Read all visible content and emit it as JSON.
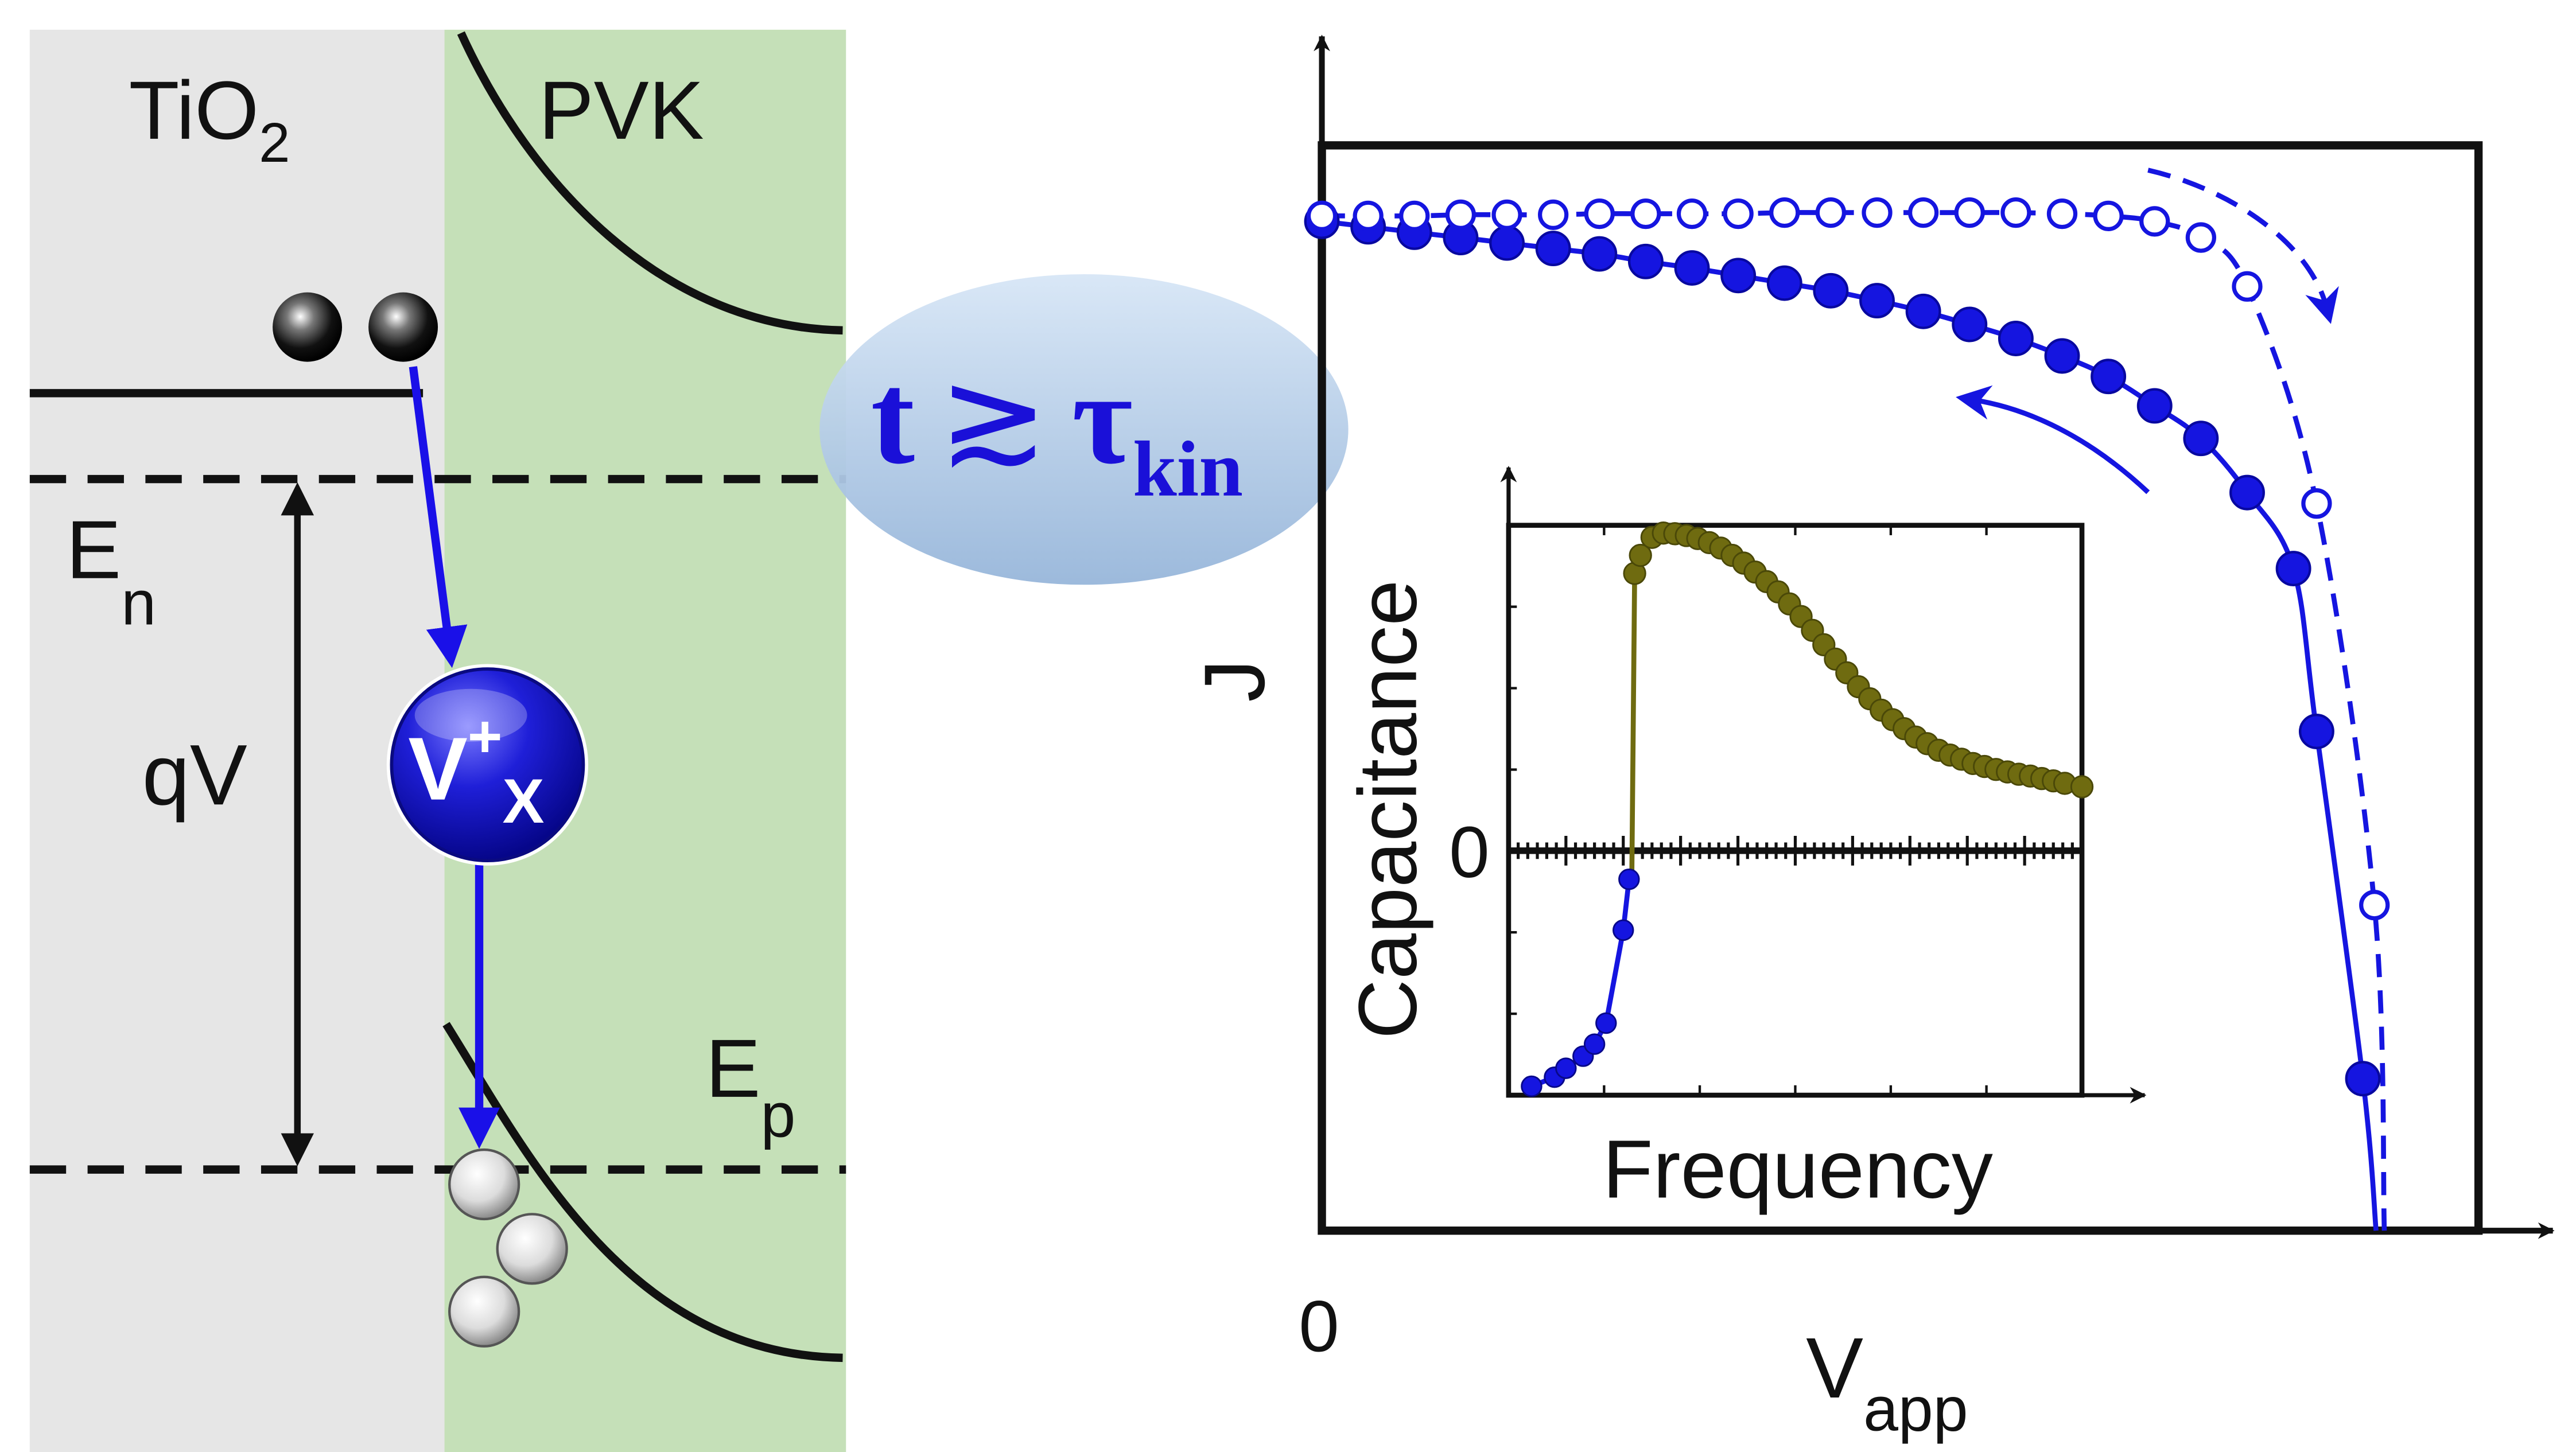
{
  "band_diagram": {
    "left_layer": {
      "base": "TiO",
      "sub": "2"
    },
    "right_layer": "PVK",
    "quasi_fermi_n": {
      "base": "E",
      "sub": "n"
    },
    "quasi_fermi_p": {
      "base": "E",
      "sub": "p"
    },
    "voltage_label": "qV",
    "vacancy": {
      "base": "V",
      "sup": "+",
      "sub": "X"
    },
    "colors": {
      "tio2": "#e6e6e6",
      "pvk": "#c5e0b8",
      "arrow": "#1a10e8",
      "ion": "#1a1ad8"
    }
  },
  "bubble": {
    "main": "t",
    "relation": "≳",
    "tau": "τ",
    "tau_sub": "kin",
    "color": "#a9c6e6"
  },
  "main_plot": {
    "y_label": "J",
    "x_label": {
      "base": "V",
      "sub": "app"
    },
    "origin_label": "0",
    "colors": {
      "series": "#1515e0"
    }
  },
  "inset": {
    "y_label": "Capacitance",
    "x_label": "Frequency",
    "zero_label": "0",
    "colors": {
      "positive": "#6f6b10",
      "negative": "#1515e0"
    }
  },
  "chart_data": [
    {
      "type": "line",
      "xlabel": "V_app",
      "ylabel": "J",
      "xlim": [
        0,
        1.0
      ],
      "ylim": [
        0,
        1.0
      ],
      "series": [
        {
          "style": "filled circles, solid line",
          "x": [
            0.0,
            0.04,
            0.08,
            0.12,
            0.16,
            0.2,
            0.24,
            0.28,
            0.32,
            0.36,
            0.4,
            0.44,
            0.48,
            0.52,
            0.56,
            0.6,
            0.64,
            0.68,
            0.72,
            0.76,
            0.8,
            0.84,
            0.86,
            0.9
          ],
          "y": [
            0.93,
            0.925,
            0.92,
            0.915,
            0.91,
            0.905,
            0.9,
            0.893,
            0.887,
            0.88,
            0.873,
            0.866,
            0.857,
            0.847,
            0.835,
            0.822,
            0.806,
            0.787,
            0.76,
            0.73,
            0.68,
            0.61,
            0.46,
            0.14
          ]
        },
        {
          "style": "open circles, dashed line",
          "x": [
            0.0,
            0.04,
            0.08,
            0.12,
            0.16,
            0.2,
            0.24,
            0.28,
            0.32,
            0.36,
            0.4,
            0.44,
            0.48,
            0.52,
            0.56,
            0.6,
            0.64,
            0.68,
            0.72,
            0.76,
            0.8,
            0.86,
            0.91
          ],
          "y": [
            0.935,
            0.935,
            0.935,
            0.936,
            0.936,
            0.936,
            0.937,
            0.937,
            0.937,
            0.937,
            0.938,
            0.938,
            0.938,
            0.938,
            0.938,
            0.938,
            0.937,
            0.935,
            0.93,
            0.915,
            0.87,
            0.67,
            0.3
          ]
        }
      ]
    },
    {
      "type": "scatter",
      "xlabel": "Frequency",
      "ylabel": "Capacitance",
      "xlim": [
        0,
        1.0
      ],
      "ylim": [
        -0.37,
        0.58
      ],
      "series": [
        {
          "style": "olive, positive capacitance",
          "x": [
            0.22,
            0.23,
            0.25,
            0.27,
            0.29,
            0.31,
            0.33,
            0.35,
            0.37,
            0.39,
            0.41,
            0.43,
            0.45,
            0.47,
            0.49,
            0.51,
            0.53,
            0.55,
            0.57,
            0.59,
            0.61,
            0.63,
            0.65,
            0.67,
            0.69,
            0.71,
            0.73,
            0.75,
            0.77,
            0.79,
            0.81,
            0.83,
            0.85,
            0.87,
            0.89,
            0.91,
            0.93,
            0.95,
            0.97,
            1.0
          ],
          "y": [
            0.5,
            0.53,
            0.56,
            0.567,
            0.566,
            0.563,
            0.558,
            0.551,
            0.542,
            0.53,
            0.517,
            0.502,
            0.486,
            0.469,
            0.449,
            0.428,
            0.405,
            0.381,
            0.357,
            0.334,
            0.311,
            0.291,
            0.272,
            0.256,
            0.241,
            0.227,
            0.216,
            0.205,
            0.197,
            0.19,
            0.183,
            0.178,
            0.173,
            0.169,
            0.165,
            0.162,
            0.158,
            0.154,
            0.15,
            0.144
          ]
        },
        {
          "style": "blue, negative capacitance",
          "x": [
            0.04,
            0.08,
            0.1,
            0.13,
            0.15,
            0.17,
            0.2,
            0.21
          ],
          "y": [
            -0.355,
            -0.34,
            -0.325,
            -0.305,
            -0.285,
            -0.25,
            -0.095,
            -0.01
          ]
        }
      ]
    }
  ]
}
